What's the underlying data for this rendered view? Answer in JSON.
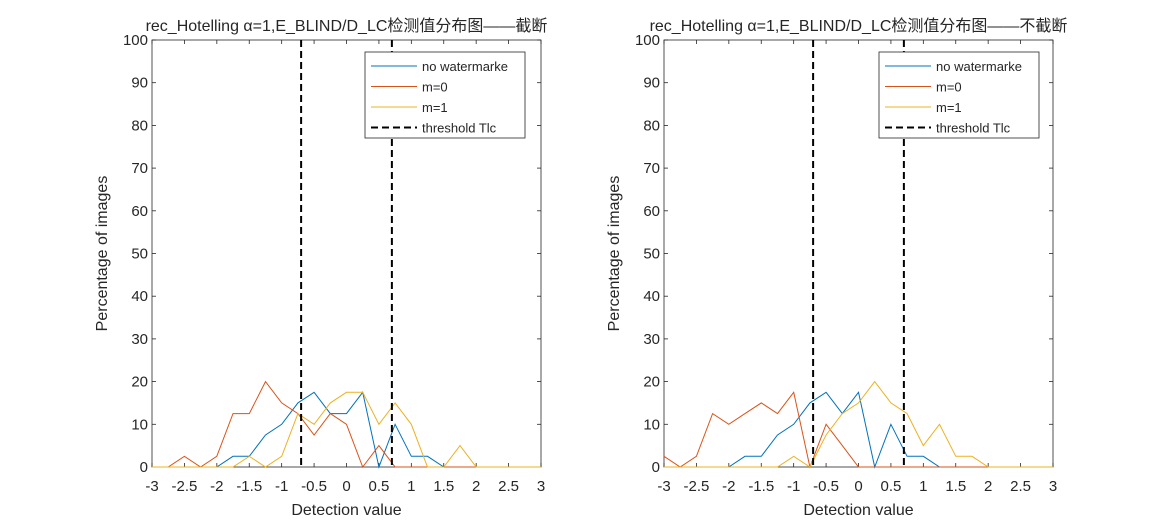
{
  "chart_data": [
    {
      "type": "line",
      "title": "rec_Hotelling α=1,E_BLIND/D_LC检测值分布图——截断",
      "xlabel": "Detection value",
      "ylabel": "Percentage of images",
      "xlim": [
        -3,
        3
      ],
      "ylim": [
        0,
        100
      ],
      "xticks": [
        "-3",
        "-2.5",
        "-2",
        "-1.5",
        "-1",
        "-0.5",
        "0",
        "0.5",
        "1",
        "1.5",
        "2",
        "2.5",
        "3"
      ],
      "yticks": [
        "0",
        "10",
        "20",
        "30",
        "40",
        "50",
        "60",
        "70",
        "80",
        "90",
        "100"
      ],
      "grid": false,
      "legend_position": "top-right",
      "x": [
        -3,
        -2.75,
        -2.5,
        -2.25,
        -2,
        -1.75,
        -1.5,
        -1.25,
        -1,
        -0.75,
        -0.5,
        -0.25,
        0,
        0.25,
        0.5,
        0.75,
        1,
        1.25,
        1.5,
        1.75,
        2,
        2.25,
        2.5,
        2.75,
        3
      ],
      "series": [
        {
          "name": "no watermarke",
          "color": "#0072BD",
          "values": [
            0,
            0,
            0,
            0,
            0,
            2.5,
            2.5,
            7.5,
            10,
            15,
            17.5,
            12.5,
            12.5,
            17.5,
            0,
            10,
            2.5,
            2.5,
            0,
            0,
            0,
            0,
            0,
            0,
            0
          ]
        },
        {
          "name": "m=0",
          "color": "#D95319",
          "values": [
            0,
            0,
            2.5,
            0,
            2.5,
            12.5,
            12.5,
            20,
            15,
            12.5,
            7.5,
            12.5,
            10,
            0,
            5,
            0,
            0,
            0,
            0,
            0,
            0,
            0,
            0,
            0,
            0
          ]
        },
        {
          "name": "m=1",
          "color": "#EDB120",
          "values": [
            0,
            0,
            0,
            0,
            0,
            0,
            2.5,
            0,
            2.5,
            12.5,
            10,
            15,
            17.5,
            17.5,
            10,
            15,
            10,
            0,
            0,
            5,
            0,
            0,
            0,
            0,
            0
          ]
        }
      ],
      "thresholds": {
        "name": "threshold Tlc",
        "color": "#000000",
        "style": "dashed",
        "values": [
          -0.7,
          0.7
        ]
      }
    },
    {
      "type": "line",
      "title": "rec_Hotelling α=1,E_BLIND/D_LC检测值分布图——不截断",
      "xlabel": "Detection value",
      "ylabel": "Percentage of images",
      "xlim": [
        -3,
        3
      ],
      "ylim": [
        0,
        100
      ],
      "xticks": [
        "-3",
        "-2.5",
        "-2",
        "-1.5",
        "-1",
        "-0.5",
        "0",
        "0.5",
        "1",
        "1.5",
        "2",
        "2.5",
        "3"
      ],
      "yticks": [
        "0",
        "10",
        "20",
        "30",
        "40",
        "50",
        "60",
        "70",
        "80",
        "90",
        "100"
      ],
      "grid": false,
      "legend_position": "top-right",
      "x": [
        -3,
        -2.75,
        -2.5,
        -2.25,
        -2,
        -1.75,
        -1.5,
        -1.25,
        -1,
        -0.75,
        -0.5,
        -0.25,
        0,
        0.25,
        0.5,
        0.75,
        1,
        1.25,
        1.5,
        1.75,
        2,
        2.25,
        2.5,
        2.75,
        3
      ],
      "series": [
        {
          "name": "no watermarke",
          "color": "#0072BD",
          "values": [
            0,
            0,
            0,
            0,
            0,
            2.5,
            2.5,
            7.5,
            10,
            15,
            17.5,
            12.5,
            17.5,
            0,
            10,
            2.5,
            2.5,
            0,
            0,
            0,
            0,
            0,
            0,
            0,
            0
          ]
        },
        {
          "name": "m=0",
          "color": "#D95319",
          "values": [
            2.5,
            0,
            2.5,
            12.5,
            10,
            12.5,
            15,
            12.5,
            17.5,
            0,
            10,
            5,
            0,
            0,
            0,
            0,
            0,
            0,
            0,
            0,
            0,
            0,
            0,
            0,
            0
          ]
        },
        {
          "name": "m=1",
          "color": "#EDB120",
          "values": [
            0,
            0,
            0,
            0,
            0,
            0,
            0,
            0,
            2.5,
            0,
            7.5,
            12.5,
            15,
            20,
            15,
            12.5,
            5,
            10,
            2.5,
            2.5,
            0,
            0,
            0,
            0,
            0
          ]
        }
      ],
      "thresholds": {
        "name": "threshold Tlc",
        "color": "#000000",
        "style": "dashed",
        "values": [
          -0.7,
          0.7
        ]
      }
    }
  ]
}
